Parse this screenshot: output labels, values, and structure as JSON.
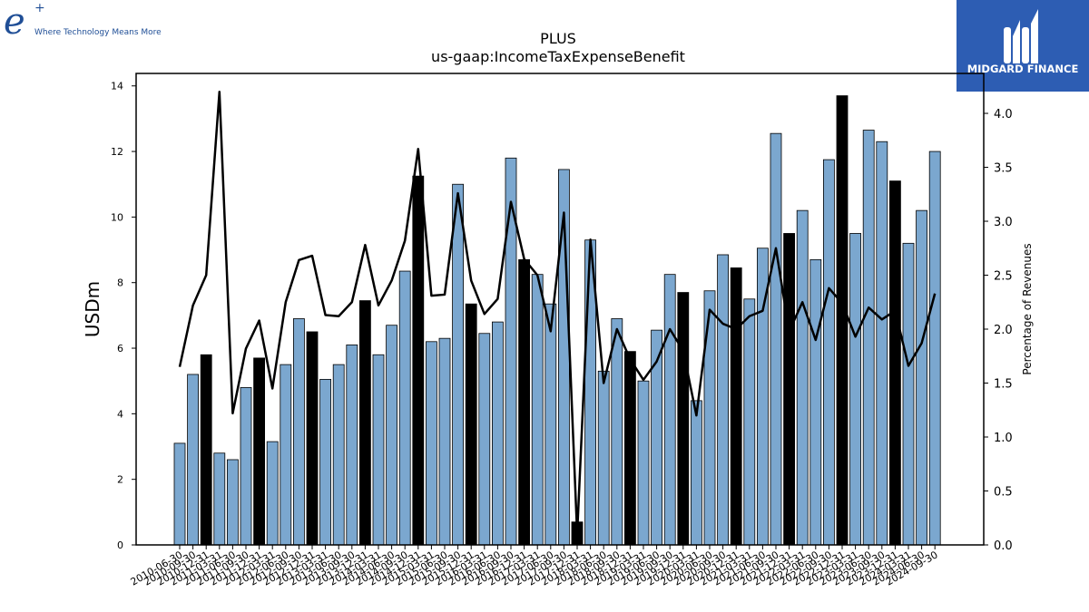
{
  "header": {
    "left_logo_mark": "e",
    "left_logo_plus": "+",
    "left_tagline": "Where Technology Means More",
    "right_brand": "MIDGARD FINANCE"
  },
  "chart_data": {
    "type": "bar",
    "title": "PLUS",
    "subtitle": "us-gaap:IncomeTaxExpenseBenefit",
    "ylabel": "USDm",
    "y2label": "Percentage of Revenues",
    "ylim": [
      0,
      14.38
    ],
    "y2lim": [
      0,
      4.37
    ],
    "yticks": [
      0,
      2,
      4,
      6,
      8,
      10,
      12,
      14
    ],
    "y2ticks": [
      0.0,
      0.5,
      1.0,
      1.5,
      2.0,
      2.5,
      3.0,
      3.5,
      4.0
    ],
    "grid": false,
    "colors": {
      "quarter_bar": "#7ba7cf",
      "annual_bar": "#000000",
      "line": "#000000"
    },
    "categories": [
      "2010-06-30",
      "2010-09-30",
      "2010-12-31",
      "2011-03-31",
      "2011-06-30",
      "2011-09-30",
      "2011-12-31",
      "2012-03-31",
      "2012-06-30",
      "2012-09-30",
      "2012-12-31",
      "2013-03-31",
      "2013-06-30",
      "2013-09-30",
      "2013-12-31",
      "2014-03-31",
      "2014-06-30",
      "2014-09-30",
      "2014-12-31",
      "2015-03-31",
      "2015-06-30",
      "2015-09-30",
      "2015-12-31",
      "2016-03-31",
      "2016-06-30",
      "2016-09-30",
      "2016-12-31",
      "2017-03-31",
      "2017-06-30",
      "2017-09-30",
      "2017-12-31",
      "2018-03-31",
      "2018-06-30",
      "2018-09-30",
      "2018-12-31",
      "2019-03-31",
      "2019-06-30",
      "2019-09-30",
      "2019-12-31",
      "2020-03-31",
      "2020-06-30",
      "2020-09-30",
      "2020-12-31",
      "2021-03-31",
      "2021-06-30",
      "2021-09-30",
      "2021-12-31",
      "2022-03-31",
      "2022-06-30",
      "2022-09-30",
      "2022-12-31",
      "2023-03-31",
      "2023-06-30",
      "2023-09-30",
      "2023-12-31",
      "2024-03-31",
      "2024-06-30",
      "2024-09-30"
    ],
    "values": [
      3.1,
      5.2,
      5.8,
      2.8,
      2.6,
      4.8,
      5.7,
      3.15,
      5.5,
      6.9,
      6.5,
      5.05,
      5.5,
      6.1,
      7.45,
      5.8,
      6.7,
      8.35,
      11.25,
      6.2,
      6.3,
      11.0,
      7.35,
      6.45,
      6.8,
      11.8,
      8.7,
      8.25,
      7.35,
      11.45,
      0.7,
      9.3,
      5.3,
      6.9,
      5.9,
      5.0,
      6.55,
      8.25,
      7.7,
      4.4,
      7.75,
      8.85,
      8.45,
      7.5,
      9.05,
      12.55,
      9.5,
      10.2,
      8.7,
      11.75,
      13.7,
      9.5,
      12.65,
      12.3,
      11.1,
      9.2,
      10.2,
      12.0
    ],
    "annual": [
      false,
      false,
      true,
      false,
      false,
      false,
      true,
      false,
      false,
      false,
      true,
      false,
      false,
      false,
      true,
      false,
      false,
      false,
      true,
      false,
      false,
      false,
      true,
      false,
      false,
      false,
      true,
      false,
      false,
      false,
      true,
      false,
      false,
      false,
      true,
      false,
      false,
      false,
      true,
      false,
      false,
      false,
      true,
      false,
      false,
      false,
      true,
      false,
      false,
      false,
      true,
      false,
      false,
      false,
      true,
      false,
      false,
      false
    ],
    "series": [
      {
        "type": "line",
        "axis": "right",
        "values": [
          1.65,
          2.22,
          2.5,
          4.2,
          1.22,
          1.82,
          2.08,
          1.45,
          2.25,
          2.64,
          2.68,
          2.13,
          2.12,
          2.25,
          2.78,
          2.22,
          2.45,
          2.82,
          3.67,
          2.31,
          2.32,
          3.26,
          2.45,
          2.14,
          2.28,
          3.18,
          2.65,
          2.5,
          1.98,
          3.08,
          0.1,
          2.83,
          1.5,
          2.0,
          1.72,
          1.53,
          1.7,
          2.0,
          1.8,
          1.2,
          2.18,
          2.05,
          2.0,
          2.12,
          2.17,
          2.75,
          1.98,
          2.25,
          1.9,
          2.38,
          2.24,
          1.93,
          2.2,
          2.09,
          2.17,
          1.66,
          1.87,
          2.33
        ]
      }
    ]
  }
}
